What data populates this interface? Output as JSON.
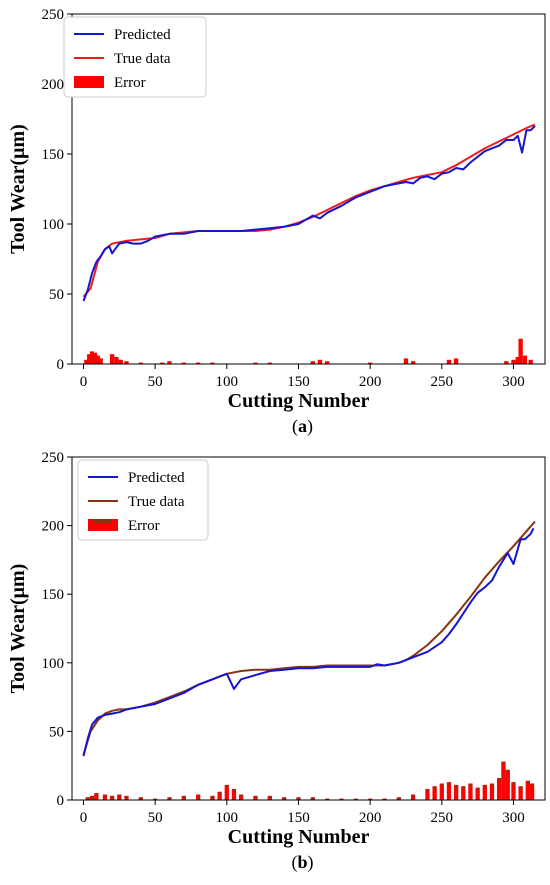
{
  "chart_data": [
    {
      "type": "line",
      "panel_label": "a",
      "xlabel": "Cutting Number",
      "ylabel": "Tool Wear(μm)",
      "xlim": [
        -8,
        322
      ],
      "ylim": [
        0,
        250
      ],
      "xticks": [
        0,
        50,
        100,
        150,
        200,
        250,
        300
      ],
      "yticks": [
        0,
        50,
        100,
        150,
        200,
        250
      ],
      "legend_position": "upper-left",
      "colors": {
        "predicted": "#1515d0",
        "true": "#ee1c1c",
        "error": "#ff0000"
      },
      "series": [
        {
          "name": "Predicted",
          "x": [
            0,
            3,
            6,
            9,
            12,
            15,
            18,
            20,
            22,
            25,
            30,
            35,
            40,
            45,
            50,
            60,
            70,
            80,
            90,
            100,
            110,
            120,
            130,
            140,
            150,
            155,
            160,
            165,
            170,
            180,
            190,
            200,
            210,
            220,
            225,
            230,
            235,
            240,
            245,
            250,
            255,
            260,
            265,
            270,
            275,
            280,
            290,
            295,
            300,
            303,
            306,
            309,
            312,
            315
          ],
          "values": [
            45,
            53,
            65,
            73,
            77,
            82,
            84,
            79,
            82,
            86,
            87,
            86,
            86,
            88,
            91,
            93,
            93,
            95,
            95,
            95,
            95,
            96,
            97,
            98,
            100,
            103,
            106,
            104,
            108,
            113,
            119,
            123,
            127,
            129,
            130,
            129,
            133,
            134,
            132,
            136,
            137,
            140,
            139,
            144,
            148,
            152,
            156,
            160,
            160,
            163,
            151,
            167,
            167,
            170
          ]
        },
        {
          "name": "True data",
          "x": [
            0,
            5,
            10,
            15,
            20,
            25,
            30,
            40,
            50,
            60,
            70,
            80,
            90,
            100,
            110,
            120,
            130,
            140,
            150,
            160,
            170,
            180,
            190,
            200,
            210,
            220,
            230,
            240,
            250,
            260,
            270,
            280,
            290,
            300,
            310,
            315
          ],
          "values": [
            48,
            54,
            73,
            82,
            86,
            87,
            88,
            89,
            90,
            93,
            94,
            95,
            95,
            95,
            95,
            95,
            96,
            98,
            101,
            105,
            110,
            115,
            120,
            124,
            127,
            130,
            133,
            135,
            137,
            142,
            148,
            154,
            159,
            164,
            169,
            171
          ]
        },
        {
          "name": "Error",
          "x": [
            2,
            4,
            6,
            8,
            10,
            12,
            20,
            23,
            26,
            30,
            40,
            55,
            60,
            70,
            80,
            90,
            120,
            130,
            160,
            165,
            170,
            200,
            225,
            230,
            255,
            260,
            295,
            300,
            303,
            305,
            308,
            312
          ],
          "values": [
            3,
            7,
            9,
            8,
            6,
            4,
            7,
            5,
            3,
            2,
            1,
            1,
            2,
            1,
            1,
            1,
            1,
            1,
            2,
            3,
            2,
            1,
            4,
            2,
            3,
            4,
            2,
            3,
            5,
            18,
            6,
            3
          ]
        }
      ]
    },
    {
      "type": "line",
      "panel_label": "b",
      "xlabel": "Cutting Number",
      "ylabel": "Tool Wear(μm)",
      "xlim": [
        -8,
        322
      ],
      "ylim": [
        0,
        250
      ],
      "xticks": [
        0,
        50,
        100,
        150,
        200,
        250,
        300
      ],
      "yticks": [
        0,
        50,
        100,
        150,
        200,
        250
      ],
      "legend_position": "upper-left",
      "colors": {
        "predicted": "#1515d0",
        "true": "#8b3410",
        "error": "#ff0000",
        "error_overlay": "#8b3410"
      },
      "series": [
        {
          "name": "Predicted",
          "x": [
            0,
            3,
            6,
            10,
            15,
            20,
            25,
            30,
            40,
            50,
            60,
            70,
            80,
            90,
            95,
            100,
            105,
            110,
            120,
            130,
            140,
            150,
            160,
            170,
            180,
            190,
            200,
            205,
            210,
            220,
            225,
            230,
            240,
            250,
            255,
            260,
            265,
            270,
            275,
            280,
            285,
            290,
            293,
            296,
            300,
            305,
            308,
            312,
            314
          ],
          "values": [
            32,
            45,
            55,
            60,
            62,
            63,
            64,
            66,
            68,
            70,
            74,
            78,
            84,
            88,
            90,
            92,
            81,
            88,
            91,
            94,
            95,
            96,
            96,
            97,
            97,
            97,
            97,
            99,
            98,
            100,
            102,
            104,
            108,
            115,
            121,
            128,
            136,
            144,
            151,
            155,
            160,
            170,
            175,
            180,
            172,
            190,
            190,
            194,
            198
          ]
        },
        {
          "name": "True data",
          "x": [
            0,
            5,
            10,
            15,
            20,
            25,
            30,
            40,
            50,
            60,
            70,
            80,
            90,
            100,
            110,
            120,
            130,
            140,
            150,
            160,
            170,
            180,
            190,
            200,
            210,
            220,
            225,
            230,
            240,
            250,
            260,
            270,
            280,
            290,
            300,
            310,
            315
          ],
          "values": [
            33,
            50,
            58,
            63,
            65,
            66,
            66,
            68,
            71,
            75,
            79,
            84,
            88,
            92,
            94,
            95,
            95,
            96,
            97,
            97,
            98,
            98,
            98,
            98,
            98,
            100,
            102,
            105,
            113,
            123,
            135,
            148,
            162,
            174,
            185,
            197,
            203
          ]
        },
        {
          "name": "Error",
          "x": [
            3,
            6,
            9,
            15,
            20,
            25,
            30,
            40,
            50,
            60,
            70,
            80,
            90,
            95,
            100,
            105,
            110,
            120,
            130,
            140,
            150,
            160,
            170,
            180,
            190,
            200,
            210,
            220,
            230,
            240,
            245,
            250,
            255,
            260,
            265,
            270,
            275,
            280,
            285,
            290,
            293,
            296,
            300,
            305,
            310,
            313
          ],
          "values": [
            2,
            3,
            5,
            4,
            3,
            4,
            3,
            2,
            1,
            2,
            3,
            4,
            3,
            6,
            11,
            8,
            4,
            3,
            3,
            2,
            2,
            2,
            1,
            1,
            1,
            1,
            1,
            2,
            4,
            8,
            10,
            12,
            13,
            11,
            10,
            12,
            9,
            11,
            12,
            16,
            28,
            22,
            13,
            10,
            14,
            12
          ]
        }
      ]
    }
  ]
}
